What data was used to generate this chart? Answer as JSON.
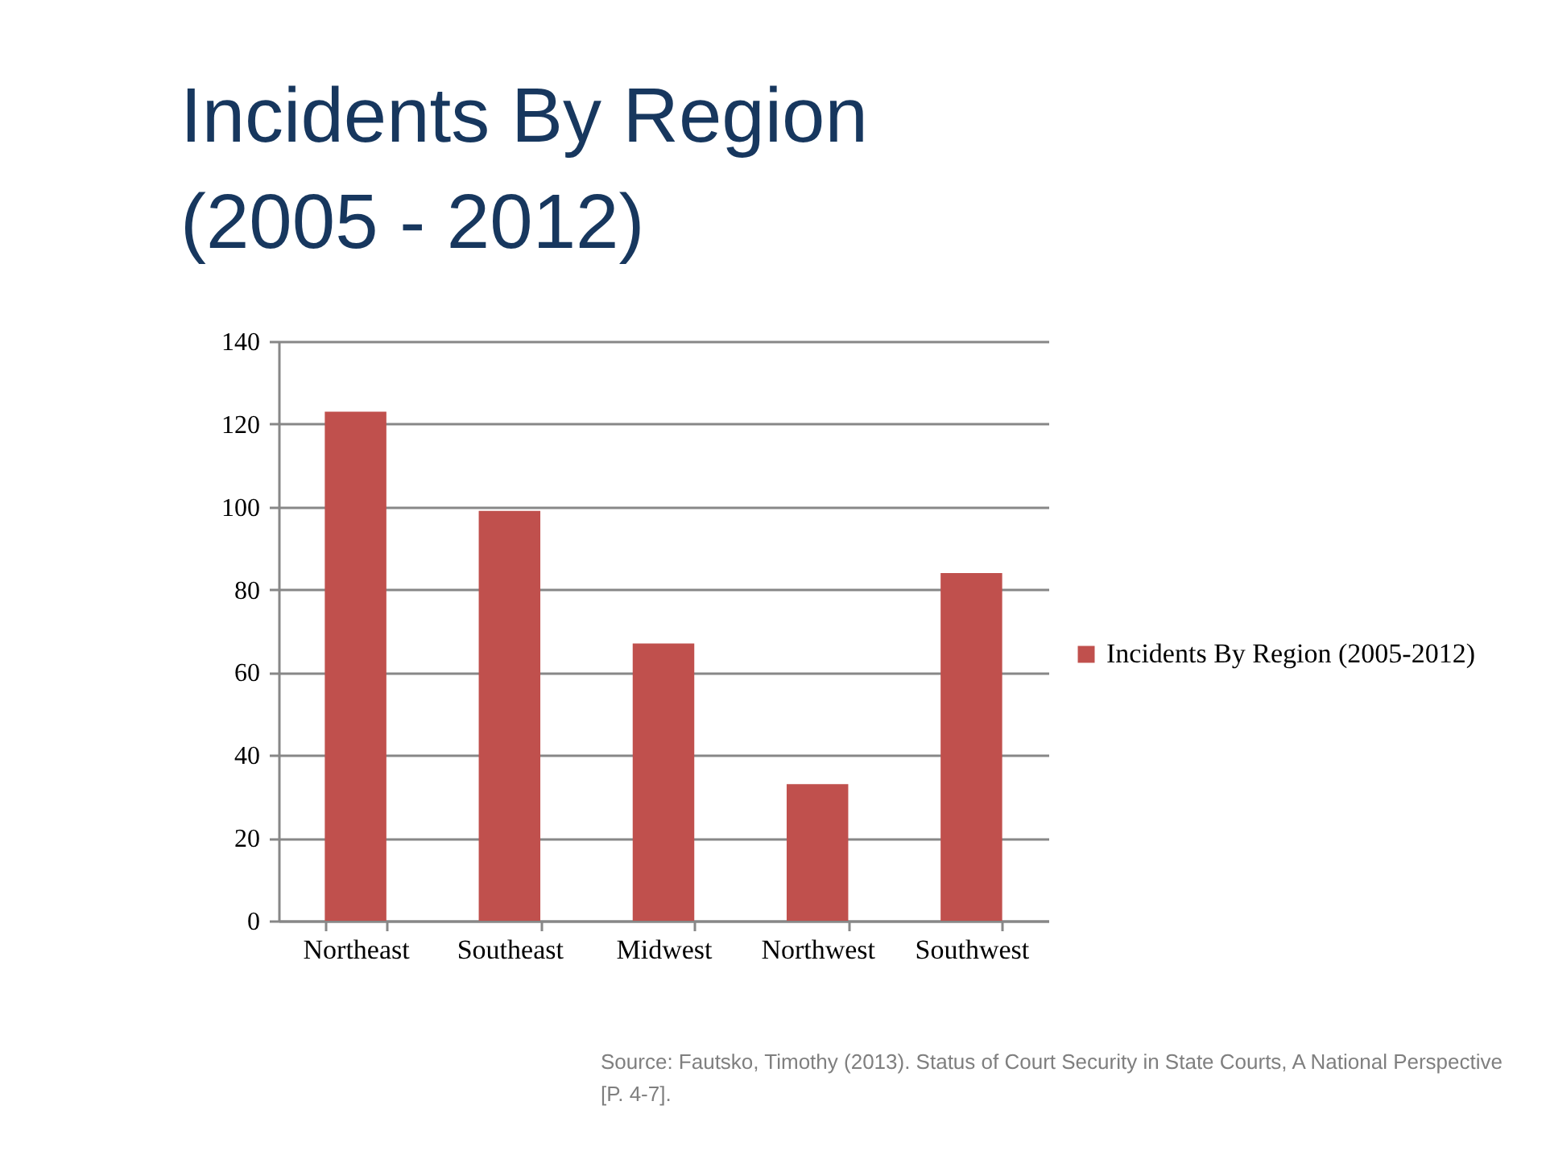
{
  "chart_data": {
    "type": "bar",
    "title": "Incidents By Region\n(2005 - 2012)",
    "categories": [
      "Northeast",
      "Southeast",
      "Midwest",
      "Northwest",
      "Southwest"
    ],
    "series": [
      {
        "name": "Incidents By Region (2005-2012)",
        "color": "#c0504d",
        "values": [
          123,
          99,
          67,
          33,
          84
        ]
      }
    ],
    "ylim": [
      0,
      140
    ],
    "yticks": [
      0,
      20,
      40,
      60,
      80,
      100,
      120,
      140
    ],
    "grid": "y",
    "legend": "right",
    "annotations": [
      "Source: Fautsko, Timothy (2013). Status of Court Security in State Courts, A National Perspective [P. 4-7]."
    ]
  }
}
